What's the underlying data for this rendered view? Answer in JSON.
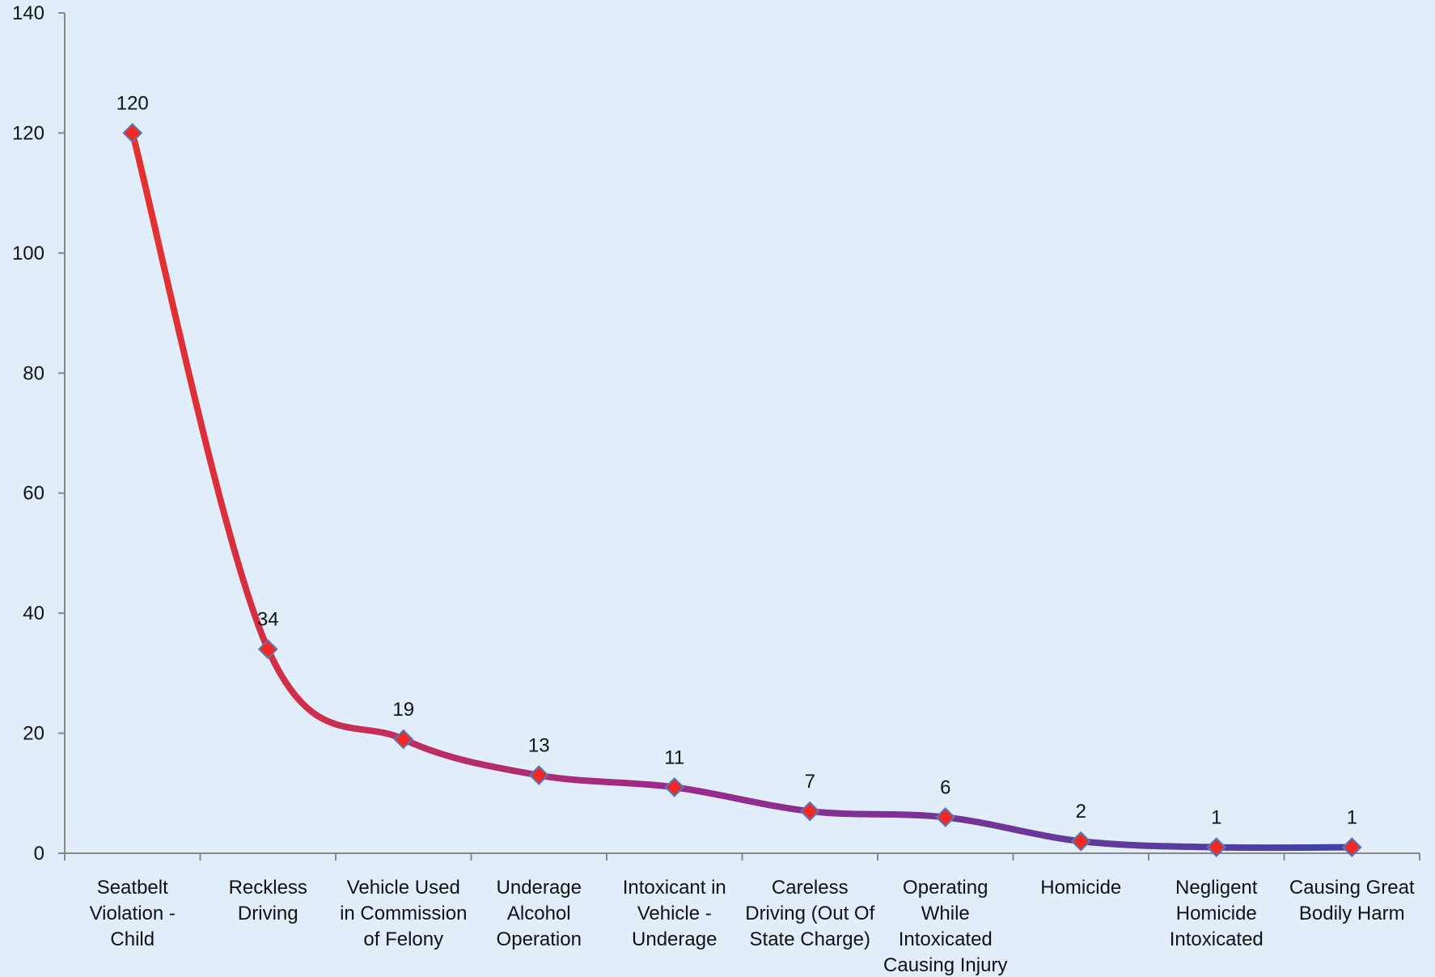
{
  "chart_data": {
    "type": "line",
    "title": "",
    "xlabel": "",
    "ylabel": "",
    "categories": [
      [
        "Seatbelt",
        "Violation -",
        "Child"
      ],
      [
        "Reckless",
        "Driving"
      ],
      [
        "Vehicle Used",
        "in Commission",
        "of Felony"
      ],
      [
        "Underage",
        "Alcohol",
        "Operation"
      ],
      [
        "Intoxicant in",
        "Vehicle -",
        "Underage"
      ],
      [
        "Careless",
        "Driving (Out Of",
        "State Charge)"
      ],
      [
        "Operating",
        "While",
        "Intoxicated",
        "Causing Injury"
      ],
      [
        "Homicide"
      ],
      [
        "Negligent",
        "Homicide",
        "Intoxicated"
      ],
      [
        "Causing Great",
        "Bodily Harm"
      ]
    ],
    "series": [
      {
        "values": [
          120,
          34,
          19,
          13,
          11,
          7,
          6,
          2,
          1,
          1
        ],
        "data_labels": [
          "120",
          "34",
          "19",
          "13",
          "11",
          "7",
          "6",
          "2",
          "1",
          "1"
        ]
      }
    ],
    "ylim": [
      0,
      140
    ],
    "yticks": [
      0,
      20,
      40,
      60,
      80,
      100,
      120,
      140
    ],
    "ytick_labels": [
      "0",
      "20",
      "40",
      "60",
      "80",
      "100",
      "120",
      "140"
    ],
    "grid": false,
    "legend": "none",
    "line_smooth": true,
    "colors": {
      "line_start": "#e8302a",
      "line_mid": "#9a2a8c",
      "line_end": "#3d43a3",
      "marker_fill": "#f02a22",
      "marker_stroke": "#5577bb",
      "axis": "#888888",
      "background": "#e1eef9"
    }
  }
}
